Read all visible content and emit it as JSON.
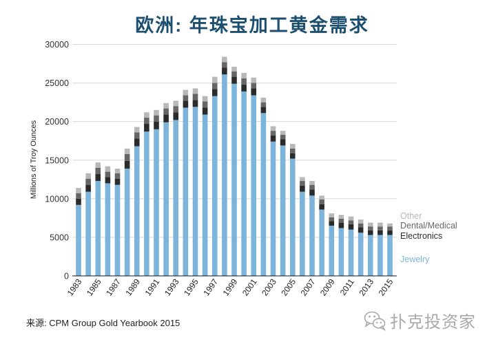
{
  "chart_data": {
    "type": "bar",
    "stacked": true,
    "title": "欧洲: 年珠宝加工黄金需求",
    "ylabel": "Millions of Troy Ounces",
    "ylim": [
      0,
      30000
    ],
    "yticks": [
      0,
      5000,
      10000,
      15000,
      20000,
      25000,
      30000
    ],
    "grid": true,
    "legend": "right",
    "x": [
      1983,
      1984,
      1985,
      1986,
      1987,
      1988,
      1989,
      1990,
      1991,
      1992,
      1993,
      1994,
      1995,
      1996,
      1997,
      1998,
      1999,
      2000,
      2001,
      2002,
      2003,
      2004,
      2005,
      2006,
      2007,
      2008,
      2009,
      2010,
      2011,
      2012,
      2013,
      2014,
      2015
    ],
    "xticks": [
      1983,
      1985,
      1987,
      1989,
      1991,
      1993,
      1995,
      1997,
      1999,
      2001,
      2003,
      2005,
      2007,
      2009,
      2011,
      2013,
      2015
    ],
    "series": [
      {
        "name": "Jewelry",
        "color": "#7db4dc",
        "values": [
          9200,
          10900,
          12300,
          12000,
          11800,
          13900,
          16800,
          18700,
          19000,
          19900,
          20200,
          21800,
          21900,
          20900,
          23300,
          26100,
          24900,
          23900,
          23400,
          21100,
          17400,
          16900,
          15200,
          10900,
          10400,
          8600,
          6500,
          6200,
          6000,
          5600,
          5300,
          5300,
          5300
        ]
      },
      {
        "name": "Electronics",
        "color": "#2b2b2b",
        "values": [
          800,
          900,
          900,
          800,
          800,
          1000,
          1000,
          1000,
          1000,
          1000,
          1000,
          900,
          900,
          900,
          900,
          900,
          900,
          900,
          900,
          800,
          800,
          800,
          700,
          800,
          800,
          700,
          600,
          700,
          700,
          700,
          600,
          600,
          600
        ]
      },
      {
        "name": "Dental/Medical",
        "color": "#666666",
        "values": [
          700,
          800,
          800,
          700,
          700,
          900,
          800,
          800,
          800,
          800,
          800,
          700,
          800,
          800,
          800,
          700,
          700,
          800,
          700,
          600,
          600,
          600,
          600,
          600,
          600,
          600,
          500,
          500,
          500,
          500,
          500,
          500,
          500
        ]
      },
      {
        "name": "Other",
        "color": "#b8b8b8",
        "values": [
          700,
          700,
          700,
          700,
          600,
          700,
          700,
          700,
          700,
          700,
          700,
          700,
          700,
          700,
          800,
          700,
          600,
          700,
          700,
          600,
          600,
          500,
          600,
          500,
          500,
          500,
          500,
          500,
          500,
          500,
          500,
          500,
          400
        ]
      }
    ]
  },
  "source": "来源: CPM Group Gold Yearbook 2015",
  "watermark": {
    "text": "扑克投资家",
    "icon": "wechat-icon"
  }
}
